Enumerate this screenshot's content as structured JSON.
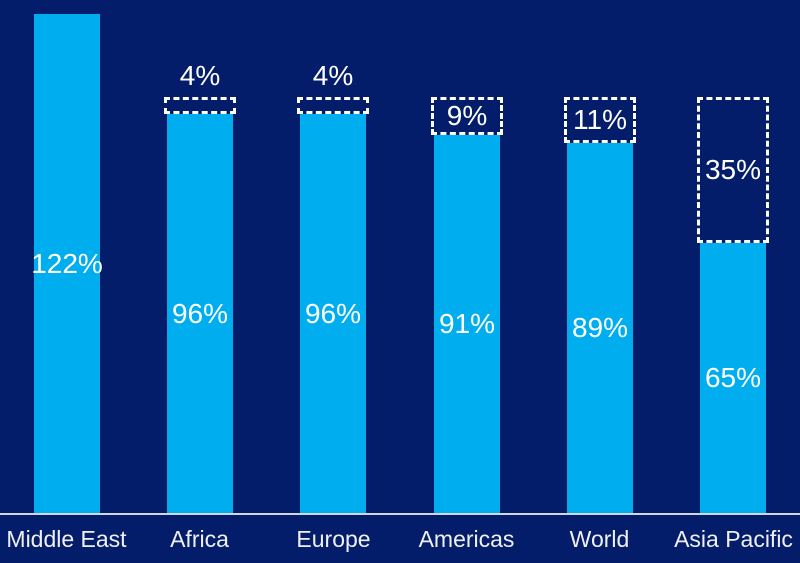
{
  "chart_data": {
    "type": "bar",
    "stacked": true,
    "title": "",
    "categories": [
      "Middle East",
      "Africa",
      "Europe",
      "Americas",
      "World",
      "Asia Pacific"
    ],
    "series": [
      {
        "name": "solid-value",
        "style": "solid-fill",
        "values": [
          122,
          96,
          96,
          91,
          89,
          65
        ],
        "labels": [
          "122%",
          "96%",
          "96%",
          "91%",
          "89%",
          "65%"
        ]
      },
      {
        "name": "dashed-gap-to-100",
        "style": "dashed-outline",
        "values": [
          0,
          4,
          4,
          9,
          11,
          35
        ],
        "labels": [
          "",
          "4%",
          "4%",
          "9%",
          "11%",
          "35%"
        ],
        "label_placement": [
          "none",
          "above",
          "above",
          "inside",
          "inside",
          "inside"
        ]
      }
    ],
    "ylim": [
      0,
      120
    ],
    "grid": false,
    "legend": "none",
    "axis": {
      "x_line": true,
      "y_axis_visible": false
    },
    "colors": {
      "background": "#041D6B",
      "bar_fill": "#00AEEF",
      "dashed_box_border": "#FFFFFF",
      "value_label": "#FFFFFF",
      "gap_label": "#FFFFFF",
      "category_label": "#F0F0F2",
      "axis_line": "#D4D6DE"
    }
  }
}
